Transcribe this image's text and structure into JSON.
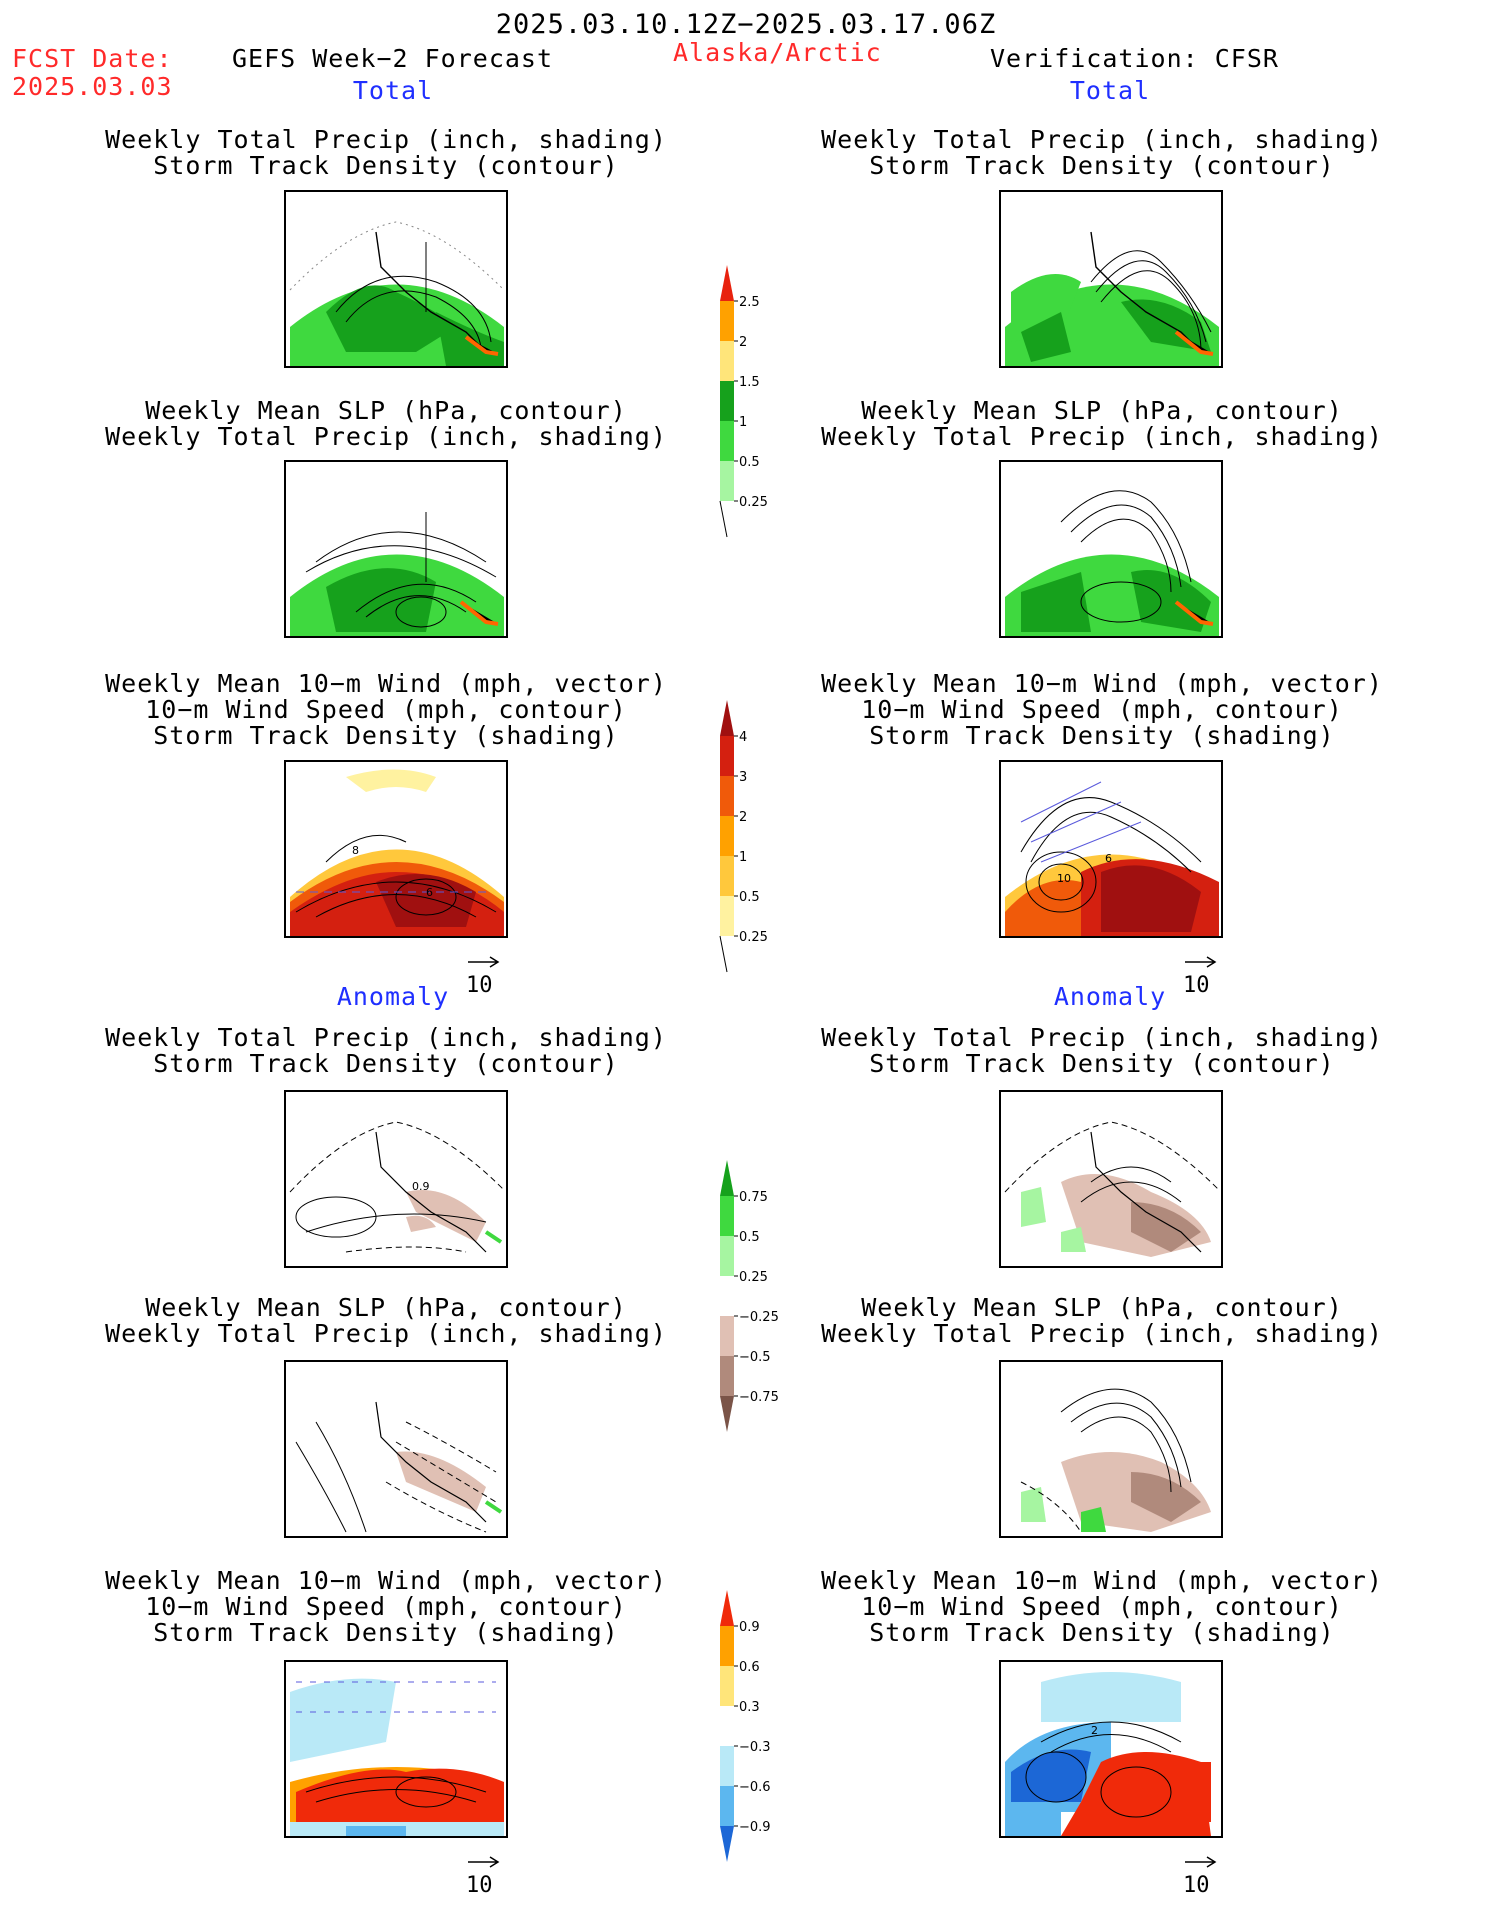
{
  "header": {
    "date_range": "2025.03.10.12Z−2025.03.17.06Z",
    "fcst_label": "FCST Date:",
    "fcst_date": "2025.03.03",
    "model_title": "GEFS Week−2 Forecast",
    "region": "Alaska/Arctic",
    "verification": "Verification: CFSR"
  },
  "sections": {
    "total": "Total",
    "anomaly": "Anomaly"
  },
  "panel_titles": {
    "precip_storm": [
      "Weekly Total Precip (inch, shading)",
      "Storm Track Density (contour)"
    ],
    "slp_precip": [
      "Weekly Mean SLP (hPa, contour)",
      "Weekly Total Precip (inch, shading)"
    ],
    "wind_storm": [
      "Weekly Mean 10−m Wind (mph, vector)",
      "10−m Wind Speed (mph, contour)",
      "Storm Track Density (shading)"
    ]
  },
  "vector_ref": "10",
  "colorbars": {
    "total_precip": {
      "labels": [
        "2.5",
        "2",
        "1.5",
        "1",
        "0.5",
        "0.25"
      ],
      "colors": [
        "#e8220e",
        "#ffa100",
        "#ffe57a",
        "#16a11c",
        "#3fd93f",
        "#a6f5a1"
      ]
    },
    "total_storm": {
      "labels": [
        "4",
        "3",
        "2",
        "1",
        "0.5",
        "0.25"
      ],
      "colors": [
        "#a01010",
        "#d42010",
        "#f05a0a",
        "#ffa100",
        "#ffc83c",
        "#fff2a0"
      ]
    },
    "anom_precip": {
      "labels": [
        "0.75",
        "0.5",
        "0.25",
        "−0.25",
        "−0.5",
        "−0.75"
      ],
      "colors": [
        "#16a11c",
        "#3fd93f",
        "#a6f5a1",
        "#ffffff",
        "#e0c0b4",
        "#b08a7c",
        "#7a5448"
      ]
    },
    "anom_storm": {
      "labels": [
        "0.9",
        "0.6",
        "0.3",
        "−0.3",
        "−0.6",
        "−0.9"
      ],
      "colors": [
        "#f02a0a",
        "#ffa100",
        "#ffe57a",
        "#ffffff",
        "#b9e9f7",
        "#5cb7ef",
        "#1c67d6"
      ]
    }
  },
  "map_labels": {
    "storm_gefs": [
      "8",
      "6"
    ],
    "storm_cfsr": [
      "10",
      "6"
    ],
    "anom_precip_gefs": "0.9",
    "anom_wind_cfsr": "2"
  }
}
